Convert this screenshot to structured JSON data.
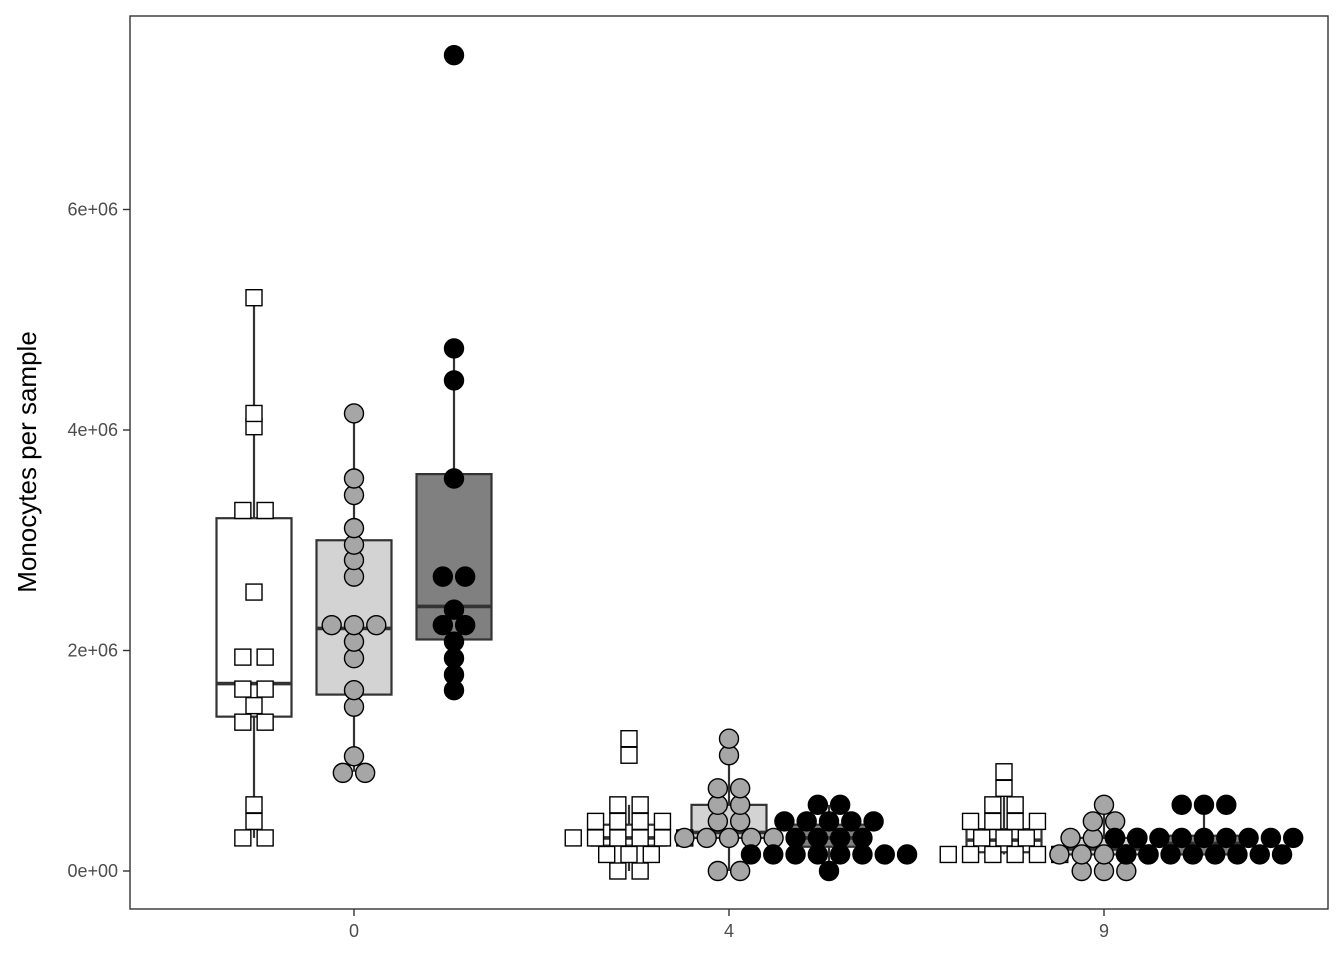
{
  "chart_data": {
    "type": "box-dotplot",
    "xlabel": "",
    "ylabel": "Monocytes per sample",
    "title": "",
    "categories": [
      "0",
      "4",
      "9"
    ],
    "ylim": [
      -600000,
      7500000
    ],
    "y_ticks": [
      0,
      2000000,
      4000000,
      6000000
    ],
    "y_tick_labels": [
      "0e+00",
      "2e+06",
      "4e+06",
      "6e+06"
    ],
    "grid": false,
    "legend": "none",
    "series": [
      {
        "shape": "square",
        "fill": "#ffffff",
        "boxes": [
          {
            "category": "0",
            "q1": 1400000,
            "median": 1700000,
            "q3": 3200000,
            "whisker_low": 300000,
            "whisker_high": 5200000
          },
          {
            "category": "4",
            "q1": 230000,
            "median": 300000,
            "q3": 420000,
            "whisker_low": 0,
            "whisker_high": 600000
          },
          {
            "category": "9",
            "q1": 170000,
            "median": 280000,
            "q3": 380000,
            "whisker_low": 150000,
            "whisker_high": 900000
          }
        ],
        "points": {
          "0": [
            5200000,
            4150000,
            4030000,
            3270000,
            3270000,
            2530000,
            1940000,
            1940000,
            1650000,
            1650000,
            1500000,
            1350000,
            1350000,
            600000,
            450000,
            300000,
            300000
          ],
          "4": [
            1200000,
            1050000,
            600000,
            600000,
            450000,
            450000,
            450000,
            450000,
            300000,
            300000,
            300000,
            300000,
            300000,
            300000,
            150000,
            150000,
            150000,
            0,
            0
          ],
          "9": [
            900000,
            750000,
            600000,
            600000,
            450000,
            450000,
            450000,
            450000,
            300000,
            300000,
            300000,
            150000,
            150000,
            150000,
            150000,
            150000,
            150000
          ]
        }
      },
      {
        "shape": "circle",
        "fill": "#a6a6a6",
        "boxes": [
          {
            "category": "0",
            "q1": 1600000,
            "median": 2200000,
            "q3": 3000000,
            "whisker_low": 900000,
            "whisker_high": 4150000
          },
          {
            "category": "4",
            "q1": 300000,
            "median": 350000,
            "q3": 600000,
            "whisker_low": 0,
            "whisker_high": 1200000
          },
          {
            "category": "9",
            "q1": 150000,
            "median": 200000,
            "q3": 300000,
            "whisker_low": 0,
            "whisker_high": 600000
          }
        ],
        "points": {
          "0": [
            4150000,
            3560000,
            3410000,
            3110000,
            2960000,
            2820000,
            2670000,
            2230000,
            2230000,
            2230000,
            2080000,
            1930000,
            1640000,
            1490000,
            1040000,
            890000,
            890000
          ],
          "4": [
            1200000,
            1050000,
            750000,
            750000,
            600000,
            600000,
            450000,
            450000,
            300000,
            300000,
            300000,
            300000,
            300000,
            0,
            0
          ],
          "9": [
            600000,
            450000,
            450000,
            300000,
            300000,
            300000,
            300000,
            150000,
            150000,
            150000,
            150000,
            150000,
            0,
            0,
            0
          ]
        }
      },
      {
        "shape": "circle",
        "fill": "#000000",
        "box_fill": "#808080",
        "boxes": [
          {
            "category": "0",
            "q1": 2100000,
            "median": 2400000,
            "q3": 3600000,
            "whisker_low": 1640000,
            "whisker_high": 4740000
          },
          {
            "category": "4",
            "q1": 220000,
            "median": 300000,
            "q3": 420000,
            "whisker_low": 0,
            "whisker_high": 600000
          },
          {
            "category": "9",
            "q1": 150000,
            "median": 250000,
            "q3": 320000,
            "whisker_low": 150000,
            "whisker_high": 600000
          }
        ],
        "points": {
          "0": [
            7400000,
            4740000,
            4450000,
            3560000,
            2670000,
            2670000,
            2370000,
            2230000,
            2230000,
            2080000,
            1930000,
            1780000,
            1640000
          ],
          "4": [
            600000,
            600000,
            450000,
            450000,
            450000,
            450000,
            450000,
            300000,
            300000,
            300000,
            300000,
            150000,
            150000,
            150000,
            150000,
            150000,
            150000,
            150000,
            150000,
            0
          ],
          "9": [
            600000,
            600000,
            600000,
            300000,
            300000,
            300000,
            300000,
            300000,
            300000,
            300000,
            300000,
            300000,
            150000,
            150000,
            150000,
            150000,
            150000,
            150000,
            150000,
            150000
          ]
        }
      }
    ]
  }
}
